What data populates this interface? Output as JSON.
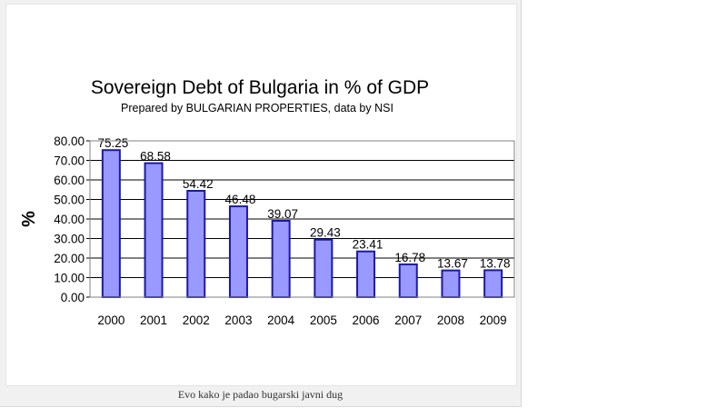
{
  "chart_data": {
    "type": "bar",
    "title": "Sovereign Debt of Bulgaria in % of GDP",
    "subtitle": "Prepared by BULGARIAN PROPERTIES, data by NSI",
    "xlabel": "",
    "ylabel": "%",
    "categories": [
      "2000",
      "2001",
      "2002",
      "2003",
      "2004",
      "2005",
      "2006",
      "2007",
      "2008",
      "2009"
    ],
    "values": [
      75.25,
      68.58,
      54.42,
      46.48,
      39.07,
      29.43,
      23.41,
      16.78,
      13.67,
      13.78
    ],
    "value_labels": [
      "75.25",
      "68.58",
      "54.42",
      "46.48",
      "39.07",
      "29.43",
      "23.41",
      "16.78",
      "13.67",
      "13.78"
    ],
    "yticks": [
      "0.00",
      "10.00",
      "20.00",
      "30.00",
      "40.00",
      "50.00",
      "60.00",
      "70.00",
      "80.00"
    ],
    "ylim": [
      0,
      80
    ],
    "grid": true,
    "legend": "none",
    "colors": {
      "bar_fill": "#9999ff",
      "bar_stroke": "#1a1aa6",
      "grid": "#000000"
    }
  },
  "caption": "Evo kako je padao bugarski javni dug"
}
